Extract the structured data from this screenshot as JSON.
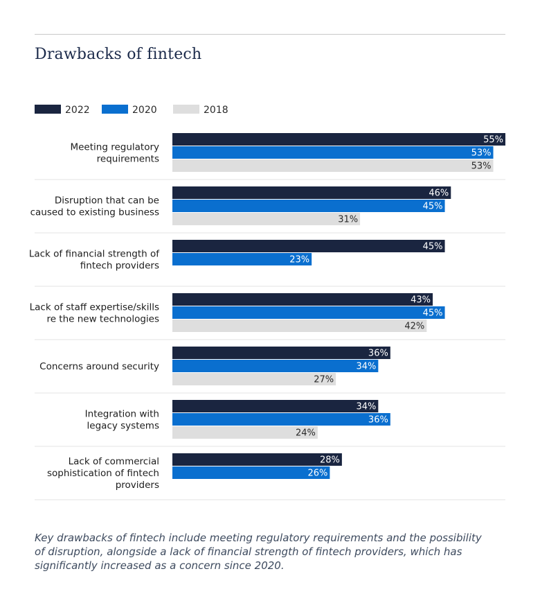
{
  "title": "Drawbacks of fintech",
  "caption": "Key drawbacks of fintech include meeting regulatory requirements and the possibility of disruption, alongside a lack of financial strength of fintech providers, which has significantly increased as a concern since 2020.",
  "colors": {
    "2022": "#1a2540",
    "2020": "#0a6fcf",
    "2018": "#dedede"
  },
  "chart_data": {
    "type": "bar",
    "orientation": "horizontal",
    "value_suffix": "%",
    "xlim": [
      0,
      55
    ],
    "grid": false,
    "legend_position": "top-left",
    "categories": [
      [
        "Meeting regulatory",
        "requirements"
      ],
      [
        "Disruption that can be",
        "caused to existing business"
      ],
      [
        "Lack of financial strength of",
        "fintech providers"
      ],
      [
        "Lack of staff expertise/skills",
        "re the new technologies"
      ],
      [
        "Concerns around security"
      ],
      [
        "Integration with",
        "legacy systems"
      ],
      [
        "Lack of commercial",
        "sophistication of fintech",
        "providers"
      ]
    ],
    "series": [
      {
        "name": "2022",
        "color": "#1a2540",
        "values": [
          55,
          46,
          45,
          43,
          36,
          34,
          28
        ]
      },
      {
        "name": "2020",
        "color": "#0a6fcf",
        "values": [
          53,
          45,
          23,
          45,
          34,
          36,
          26
        ]
      },
      {
        "name": "2018",
        "color": "#dedede",
        "values": [
          53,
          31,
          null,
          42,
          27,
          24,
          null
        ]
      }
    ]
  }
}
